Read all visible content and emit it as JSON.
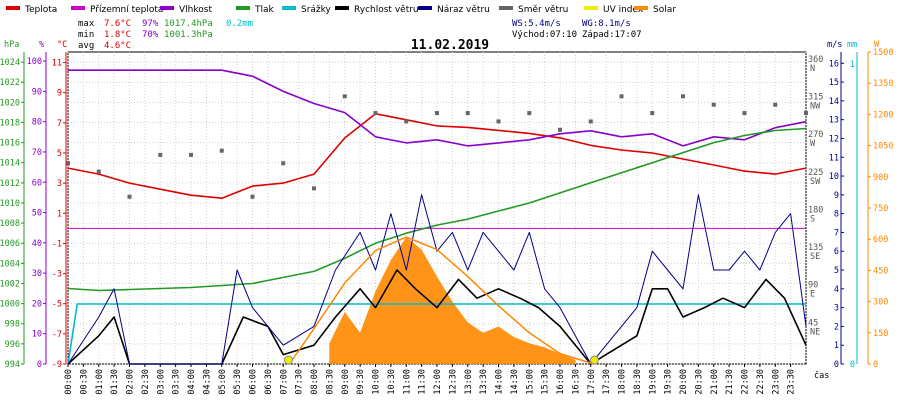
{
  "legend": [
    {
      "name": "Teplota",
      "color": "#dd0000"
    },
    {
      "name": "Přízemní teplota",
      "color": "#cc00cc"
    },
    {
      "name": "Vlhkost",
      "color": "#8800cc"
    },
    {
      "name": "Tlak",
      "color": "#229922"
    },
    {
      "name": "Srážky",
      "color": "#00bbcc"
    },
    {
      "name": "Rychlost větru",
      "color": "#000000"
    },
    {
      "name": "Náraz větru",
      "color": "#000088"
    },
    {
      "name": "Směr větru",
      "color": "#666666"
    },
    {
      "name": "UV index",
      "color": "#eeee00"
    },
    {
      "name": "Solar",
      "color": "#ff8800"
    }
  ],
  "stats": {
    "max_label": "max",
    "max_temp": "7.6°C",
    "max_hum": "97%",
    "max_press": "1017.4hPa",
    "max_rain": "0.2mm",
    "min_label": "min",
    "min_temp": "1.8°C",
    "min_hum": "70%",
    "min_press": "1001.3hPa",
    "avg_label": "avg",
    "avg_temp": "4.6°C"
  },
  "wind_info": {
    "ws": "WS:5.4m/s",
    "wg": "WG:8.1m/s",
    "sunrise": "Východ:07:10",
    "sunset": "Západ:17:07"
  },
  "axis_units": {
    "hpa": "hPa",
    "pct": "%",
    "degc": "°C",
    "ms": "m/s",
    "mm": "mm",
    "w": "W",
    "cas": "čas"
  },
  "chart_data": {
    "type": "line",
    "title": "11.02.2019",
    "x_ticks": [
      "00:00",
      "00:30",
      "01:00",
      "01:30",
      "02:00",
      "02:30",
      "03:00",
      "03:30",
      "04:00",
      "04:30",
      "05:00",
      "05:30",
      "06:00",
      "06:30",
      "07:00",
      "07:30",
      "08:00",
      "08:30",
      "09:00",
      "09:30",
      "10:00",
      "10:30",
      "11:00",
      "11:30",
      "12:00",
      "12:30",
      "13:00",
      "13:30",
      "14:00",
      "14:30",
      "15:00",
      "15:30",
      "16:00",
      "16:30",
      "17:00",
      "17:30",
      "18:00",
      "18:30",
      "19:00",
      "19:30",
      "20:00",
      "20:30",
      "21:00",
      "21:30",
      "22:00",
      "22:30",
      "23:00",
      "23:30"
    ],
    "axes": {
      "pressure_hpa": {
        "ticks": [
          994,
          996,
          998,
          1000,
          1002,
          1004,
          1006,
          1008,
          1010,
          1012,
          1014,
          1016,
          1018,
          1020,
          1022,
          1024
        ],
        "range": [
          994,
          1025
        ]
      },
      "humidity_pct": {
        "ticks": [
          0,
          10,
          20,
          30,
          40,
          50,
          60,
          70,
          80,
          90,
          100
        ],
        "range": [
          0,
          103
        ]
      },
      "temperature_c": {
        "ticks": [
          -9,
          -7,
          -5,
          -3,
          -1,
          1,
          3,
          5,
          7,
          9,
          11
        ],
        "range": [
          -9,
          11.7
        ]
      },
      "wind_ms": {
        "ticks": [
          0,
          1,
          2,
          3,
          4,
          5,
          6,
          7,
          8,
          9,
          10,
          11,
          12,
          13,
          14,
          15,
          16
        ],
        "range": [
          0,
          16.6
        ]
      },
      "direction_deg": {
        "ticks": [
          {
            "v": 45,
            "l": "NE"
          },
          {
            "v": 90,
            "l": "E"
          },
          {
            "v": 135,
            "l": "SE"
          },
          {
            "v": 180,
            "l": "S"
          },
          {
            "v": 225,
            "l": "SW"
          },
          {
            "v": 270,
            "l": "W"
          },
          {
            "v": 315,
            "l": "NW"
          },
          {
            "v": 360,
            "l": "N"
          }
        ],
        "range": [
          0,
          373
        ]
      },
      "rain_mm": {
        "ticks": [
          0,
          1
        ],
        "range": [
          0,
          1.04
        ]
      },
      "solar_w": {
        "ticks": [
          0,
          150,
          300,
          450,
          600,
          750,
          900,
          1050,
          1200,
          1350,
          1500
        ],
        "range": [
          0,
          1500
        ]
      }
    },
    "series": [
      {
        "name": "Teplota",
        "axis": "temperature_c",
        "color": "#dd0000",
        "x": [
          0,
          1,
          2,
          3,
          4,
          5,
          6,
          7,
          8,
          9,
          10,
          11,
          12,
          13,
          14,
          15,
          16,
          17,
          18,
          19,
          20,
          21,
          22,
          23,
          24
        ],
        "y": [
          4.0,
          3.6,
          3.0,
          2.6,
          2.2,
          2.0,
          2.8,
          3.0,
          3.6,
          6.0,
          7.6,
          7.2,
          6.8,
          6.7,
          6.5,
          6.3,
          6.0,
          5.5,
          5.2,
          5.0,
          4.6,
          4.2,
          3.8,
          3.6,
          4.0
        ]
      },
      {
        "name": "Vlhkost",
        "axis": "humidity_pct",
        "color": "#8800cc",
        "x": [
          0,
          1,
          2,
          3,
          4,
          5,
          6,
          7,
          8,
          9,
          10,
          11,
          12,
          13,
          14,
          15,
          16,
          17,
          18,
          19,
          20,
          21,
          22,
          23,
          24
        ],
        "y": [
          97,
          97,
          97,
          97,
          97,
          97,
          95,
          90,
          86,
          83,
          75,
          73,
          74,
          72,
          73,
          74,
          76,
          77,
          75,
          76,
          72,
          75,
          74,
          78,
          80
        ]
      },
      {
        "name": "Tlak",
        "axis": "pressure_hpa",
        "color": "#229922",
        "x": [
          0,
          1,
          2,
          3,
          4,
          5,
          6,
          7,
          8,
          9,
          10,
          11,
          12,
          13,
          14,
          15,
          16,
          17,
          18,
          19,
          20,
          21,
          22,
          23,
          24
        ],
        "y": [
          1001.5,
          1001.3,
          1001.4,
          1001.5,
          1001.6,
          1001.8,
          1002.0,
          1002.6,
          1003.2,
          1004.5,
          1006.0,
          1007.0,
          1007.8,
          1008.4,
          1009.2,
          1010.0,
          1011.0,
          1012.0,
          1013.0,
          1014.0,
          1015.0,
          1016.0,
          1016.7,
          1017.2,
          1017.4
        ]
      },
      {
        "name": "Srážky",
        "axis": "rain_mm",
        "color": "#00bbcc",
        "x": [
          0,
          0.3,
          24
        ],
        "y": [
          0,
          0.2,
          0.2
        ]
      },
      {
        "name": "Rychlost větru",
        "axis": "wind_ms",
        "color": "#000000",
        "x": [
          0,
          1,
          1.5,
          2,
          3,
          4,
          5,
          5.7,
          6.5,
          7,
          8,
          8.7,
          9.5,
          10,
          10.7,
          11.3,
          12,
          12.7,
          13.3,
          14,
          14.7,
          15.3,
          16,
          17,
          17.5,
          18,
          18.5,
          19,
          19.5,
          20,
          20.7,
          21.3,
          22,
          22.7,
          23.3,
          24
        ],
        "y": [
          0,
          1.5,
          2.5,
          0,
          0,
          0,
          0,
          2.5,
          2,
          0.5,
          1,
          2.5,
          4,
          3,
          5,
          4,
          3,
          4.5,
          3.5,
          4,
          3.5,
          3,
          2,
          0,
          0.5,
          1,
          1.5,
          4,
          4,
          2.5,
          3,
          3.5,
          3,
          4.5,
          3.5,
          1
        ]
      },
      {
        "name": "Náraz větru",
        "axis": "wind_ms",
        "color": "#000088",
        "x": [
          0,
          1,
          1.5,
          2,
          4,
          5,
          5.5,
          6,
          7,
          8,
          8.7,
          9.5,
          10,
          10.5,
          11,
          11.5,
          12,
          12.5,
          13,
          13.5,
          14,
          14.5,
          15,
          15.5,
          16,
          17,
          17.5,
          18,
          18.5,
          19,
          19.5,
          20,
          20.5,
          21,
          21.5,
          22,
          22.5,
          23,
          23.5,
          24
        ],
        "y": [
          0,
          2.5,
          4,
          0,
          0,
          0,
          5,
          3,
          1,
          2,
          5,
          7,
          5,
          8,
          5,
          9,
          6,
          7,
          5,
          7,
          6,
          5,
          7,
          4,
          3,
          0,
          1,
          2,
          3,
          6,
          5,
          4,
          9,
          5,
          5,
          6,
          5,
          7,
          8,
          2
        ]
      },
      {
        "name": "Solar",
        "axis": "solar_w",
        "color": "#ff8800",
        "x": [
          7.2,
          8,
          9,
          10,
          11,
          12,
          13,
          14,
          15,
          16,
          17.1
        ],
        "y": [
          0,
          170,
          390,
          545,
          610,
          550,
          420,
          280,
          150,
          50,
          0
        ]
      },
      {
        "name": "Solar (measured)",
        "axis": "solar_w",
        "color": "#ff8800",
        "x": [
          8.5,
          9,
          9.5,
          10,
          10.5,
          11,
          11.5,
          12,
          12.5,
          13,
          13.5,
          14,
          14.5,
          15,
          15.5,
          16,
          16.5
        ],
        "y": [
          100,
          250,
          150,
          350,
          500,
          610,
          550,
          420,
          300,
          200,
          150,
          180,
          130,
          100,
          80,
          50,
          20
        ]
      },
      {
        "name": "Směr větru",
        "axis": "direction_deg",
        "color": "#666666",
        "x": [
          0,
          1,
          2,
          3,
          4,
          5,
          6,
          7,
          8,
          9,
          10,
          11,
          12,
          13,
          14,
          15,
          16,
          17,
          18,
          19,
          20,
          21,
          22,
          23,
          24
        ],
        "y": [
          240,
          230,
          200,
          250,
          250,
          255,
          200,
          240,
          210,
          320,
          300,
          290,
          300,
          300,
          290,
          300,
          280,
          290,
          320,
          300,
          320,
          310,
          300,
          310,
          300
        ]
      }
    ],
    "sun_events": [
      {
        "x": 7.17,
        "label": "Východ"
      },
      {
        "x": 17.12,
        "label": "Západ"
      }
    ],
    "grid": true
  }
}
